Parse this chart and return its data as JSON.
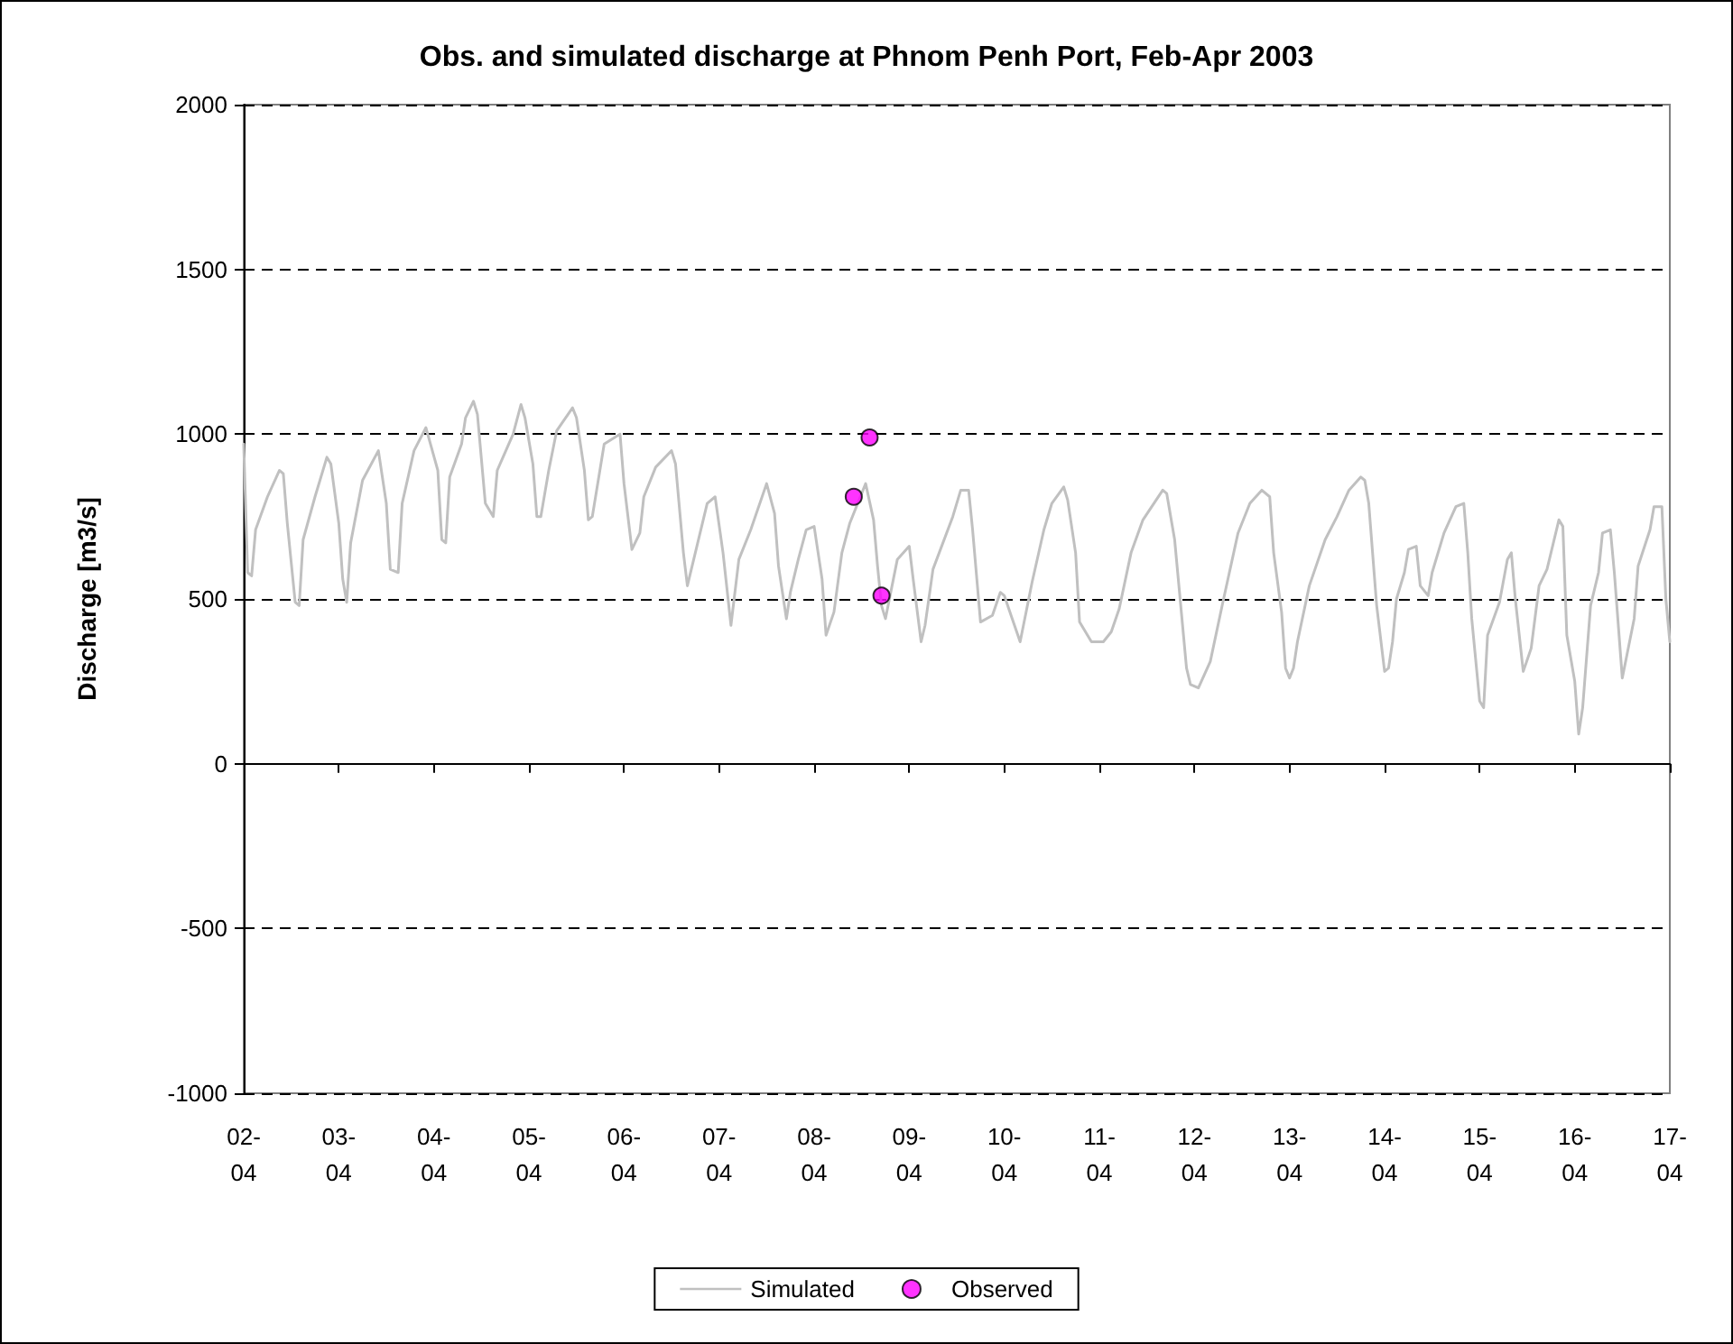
{
  "chart_data": {
    "type": "line",
    "title": "Obs. and simulated discharge at Phnom Penh Port, Feb-Apr 2003",
    "ylabel": "Discharge [m3/s]",
    "xlim": [
      "2003-04-02",
      "2003-04-17"
    ],
    "xticks": [
      {
        "value": "2003-04-02",
        "label": "02-\n04"
      },
      {
        "value": "2003-04-03",
        "label": "03-\n04"
      },
      {
        "value": "2003-04-04",
        "label": "04-\n04"
      },
      {
        "value": "2003-04-05",
        "label": "05-\n04"
      },
      {
        "value": "2003-04-06",
        "label": "06-\n04"
      },
      {
        "value": "2003-04-07",
        "label": "07-\n04"
      },
      {
        "value": "2003-04-08",
        "label": "08-\n04"
      },
      {
        "value": "2003-04-09",
        "label": "09-\n04"
      },
      {
        "value": "2003-04-10",
        "label": "10-\n04"
      },
      {
        "value": "2003-04-11",
        "label": "11-\n04"
      },
      {
        "value": "2003-04-12",
        "label": "12-\n04"
      },
      {
        "value": "2003-04-13",
        "label": "13-\n04"
      },
      {
        "value": "2003-04-14",
        "label": "14-\n04"
      },
      {
        "value": "2003-04-15",
        "label": "15-\n04"
      },
      {
        "value": "2003-04-16",
        "label": "16-\n04"
      },
      {
        "value": "2003-04-17",
        "label": "17-\n04"
      }
    ],
    "ylim": [
      -1000,
      2000
    ],
    "yticks": [
      -1000,
      -500,
      0,
      500,
      1000,
      1500,
      2000
    ],
    "grid": "y",
    "legend": "bottom",
    "line_style": "solid",
    "series": [
      {
        "name": "Simulated",
        "color": "#c0c0c0",
        "marker": "none",
        "x": [
          "2003-04-02T00:00",
          "2003-04-02T01:00",
          "2003-04-02T02:00",
          "2003-04-02T03:00",
          "2003-04-02T06:00",
          "2003-04-02T09:00",
          "2003-04-02T10:00",
          "2003-04-02T11:00",
          "2003-04-02T13:00",
          "2003-04-02T14:00",
          "2003-04-02T15:00",
          "2003-04-02T18:00",
          "2003-04-02T21:00",
          "2003-04-02T22:00",
          "2003-04-03T00:00",
          "2003-04-03T01:00",
          "2003-04-03T02:00",
          "2003-04-03T03:00",
          "2003-04-03T06:00",
          "2003-04-03T10:00",
          "2003-04-03T12:00",
          "2003-04-03T13:00",
          "2003-04-03T15:00",
          "2003-04-03T16:00",
          "2003-04-03T19:00",
          "2003-04-03T22:00",
          "2003-04-04T01:00",
          "2003-04-04T02:00",
          "2003-04-04T03:00",
          "2003-04-04T04:00",
          "2003-04-04T07:00",
          "2003-04-04T08:00",
          "2003-04-04T10:00",
          "2003-04-04T11:00",
          "2003-04-04T13:00",
          "2003-04-04T15:00",
          "2003-04-04T16:00",
          "2003-04-04T20:00",
          "2003-04-04T22:00",
          "2003-04-04T23:00",
          "2003-04-05T01:00",
          "2003-04-05T02:00",
          "2003-04-05T03:00",
          "2003-04-05T05:00",
          "2003-04-05T07:00",
          "2003-04-05T11:00",
          "2003-04-05T12:00",
          "2003-04-05T14:00",
          "2003-04-05T15:00",
          "2003-04-05T16:00",
          "2003-04-05T19:00",
          "2003-04-05T23:00",
          "2003-04-06T00:00",
          "2003-04-06T02:00",
          "2003-04-06T04:00",
          "2003-04-06T05:00",
          "2003-04-06T08:00",
          "2003-04-06T12:00",
          "2003-04-06T13:00",
          "2003-04-06T15:00",
          "2003-04-06T16:00",
          "2003-04-06T18:00",
          "2003-04-06T21:00",
          "2003-04-06T23:00",
          "2003-04-07T01:00",
          "2003-04-07T03:00",
          "2003-04-07T05:00",
          "2003-04-07T08:00",
          "2003-04-07T12:00",
          "2003-04-07T14:00",
          "2003-04-07T15:00",
          "2003-04-07T17:00",
          "2003-04-07T18:00",
          "2003-04-07T20:00",
          "2003-04-07T22:00",
          "2003-04-08T00:00",
          "2003-04-08T02:00",
          "2003-04-08T03:00",
          "2003-04-08T05:00",
          "2003-04-08T07:00",
          "2003-04-08T09:00",
          "2003-04-08T13:00",
          "2003-04-08T15:00",
          "2003-04-08T16:00",
          "2003-04-08T17:00",
          "2003-04-08T18:00",
          "2003-04-08T21:00",
          "2003-04-09T00:00",
          "2003-04-09T01:00",
          "2003-04-09T03:00",
          "2003-04-09T04:00",
          "2003-04-09T06:00",
          "2003-04-09T11:00",
          "2003-04-09T13:00",
          "2003-04-09T15:00",
          "2003-04-09T16:00",
          "2003-04-09T18:00",
          "2003-04-09T21:00",
          "2003-04-09T23:00",
          "2003-04-10T00:00",
          "2003-04-10T02:00",
          "2003-04-10T04:00",
          "2003-04-10T07:00",
          "2003-04-10T10:00",
          "2003-04-10T12:00",
          "2003-04-10T15:00",
          "2003-04-10T16:00",
          "2003-04-10T18:00",
          "2003-04-10T19:00",
          "2003-04-10T22:00",
          "2003-04-11T01:00",
          "2003-04-11T03:00",
          "2003-04-11T05:00",
          "2003-04-11T08:00",
          "2003-04-11T11:00",
          "2003-04-11T16:00",
          "2003-04-11T17:00",
          "2003-04-11T19:00",
          "2003-04-11T22:00",
          "2003-04-11T23:00",
          "2003-04-12T01:00",
          "2003-04-12T04:00",
          "2003-04-12T07:00",
          "2003-04-12T11:00",
          "2003-04-12T14:00",
          "2003-04-12T17:00",
          "2003-04-12T19:00",
          "2003-04-12T20:00",
          "2003-04-12T22:00",
          "2003-04-12T23:00",
          "2003-04-13T00:00",
          "2003-04-13T01:00",
          "2003-04-13T02:00",
          "2003-04-13T05:00",
          "2003-04-13T09:00",
          "2003-04-13T12:00",
          "2003-04-13T15:00",
          "2003-04-13T18:00",
          "2003-04-13T19:00",
          "2003-04-13T20:00",
          "2003-04-13T22:00",
          "2003-04-14T00:00",
          "2003-04-14T01:00",
          "2003-04-14T02:00",
          "2003-04-14T03:00",
          "2003-04-14T05:00",
          "2003-04-14T06:00",
          "2003-04-14T08:00",
          "2003-04-14T09:00",
          "2003-04-14T11:00",
          "2003-04-14T12:00",
          "2003-04-14T15:00",
          "2003-04-14T18:00",
          "2003-04-14T20:00",
          "2003-04-14T21:00",
          "2003-04-14T22:00",
          "2003-04-15T00:00",
          "2003-04-15T01:00",
          "2003-04-15T02:00",
          "2003-04-15T05:00",
          "2003-04-15T07:00",
          "2003-04-15T08:00",
          "2003-04-15T09:00",
          "2003-04-15T11:00",
          "2003-04-15T13:00",
          "2003-04-15T15:00",
          "2003-04-15T17:00",
          "2003-04-15T20:00",
          "2003-04-15T21:00",
          "2003-04-15T22:00",
          "2003-04-16T00:00",
          "2003-04-16T01:00",
          "2003-04-16T02:00",
          "2003-04-16T04:00",
          "2003-04-16T06:00",
          "2003-04-16T07:00",
          "2003-04-16T09:00",
          "2003-04-16T10:00",
          "2003-04-16T12:00",
          "2003-04-16T15:00",
          "2003-04-16T16:00",
          "2003-04-16T19:00",
          "2003-04-16T20:00",
          "2003-04-16T22:00",
          "2003-04-16T23:00",
          "2003-04-17T00:00"
        ],
        "values": [
          970,
          580,
          570,
          710,
          810,
          890,
          880,
          730,
          490,
          480,
          680,
          810,
          930,
          910,
          730,
          560,
          490,
          670,
          860,
          950,
          790,
          590,
          580,
          790,
          950,
          1020,
          890,
          680,
          670,
          870,
          970,
          1050,
          1100,
          1060,
          790,
          750,
          890,
          1000,
          1090,
          1050,
          910,
          750,
          750,
          890,
          1010,
          1080,
          1050,
          890,
          740,
          750,
          970,
          1000,
          850,
          650,
          700,
          810,
          900,
          950,
          910,
          640,
          540,
          640,
          790,
          810,
          640,
          420,
          620,
          710,
          850,
          760,
          600,
          440,
          520,
          620,
          710,
          720,
          560,
          390,
          460,
          640,
          730,
          850,
          740,
          600,
          480,
          440,
          620,
          660,
          560,
          370,
          420,
          590,
          750,
          830,
          830,
          710,
          430,
          450,
          520,
          510,
          440,
          370,
          550,
          710,
          790,
          840,
          800,
          640,
          430,
          370,
          370,
          400,
          470,
          640,
          740,
          830,
          820,
          680,
          290,
          240,
          230,
          310,
          480,
          700,
          790,
          830,
          810,
          640,
          460,
          290,
          260,
          290,
          370,
          540,
          680,
          750,
          830,
          870,
          860,
          790,
          480,
          280,
          290,
          370,
          500,
          580,
          650,
          660,
          540,
          510,
          580,
          700,
          780,
          790,
          640,
          440,
          190,
          170,
          390,
          490,
          620,
          640,
          500,
          280,
          350,
          540,
          590,
          740,
          720,
          390,
          250,
          90,
          170,
          480,
          580,
          700,
          710,
          580,
          260,
          440,
          600,
          710,
          780,
          780,
          500,
          370
        ]
      },
      {
        "name": "Observed",
        "type": "scatter",
        "color": "#ff00ff",
        "marker": "circle",
        "x": [
          "2003-04-08T10:00",
          "2003-04-08T14:00",
          "2003-04-08T17:00"
        ],
        "values": [
          810,
          990,
          510
        ]
      }
    ]
  }
}
